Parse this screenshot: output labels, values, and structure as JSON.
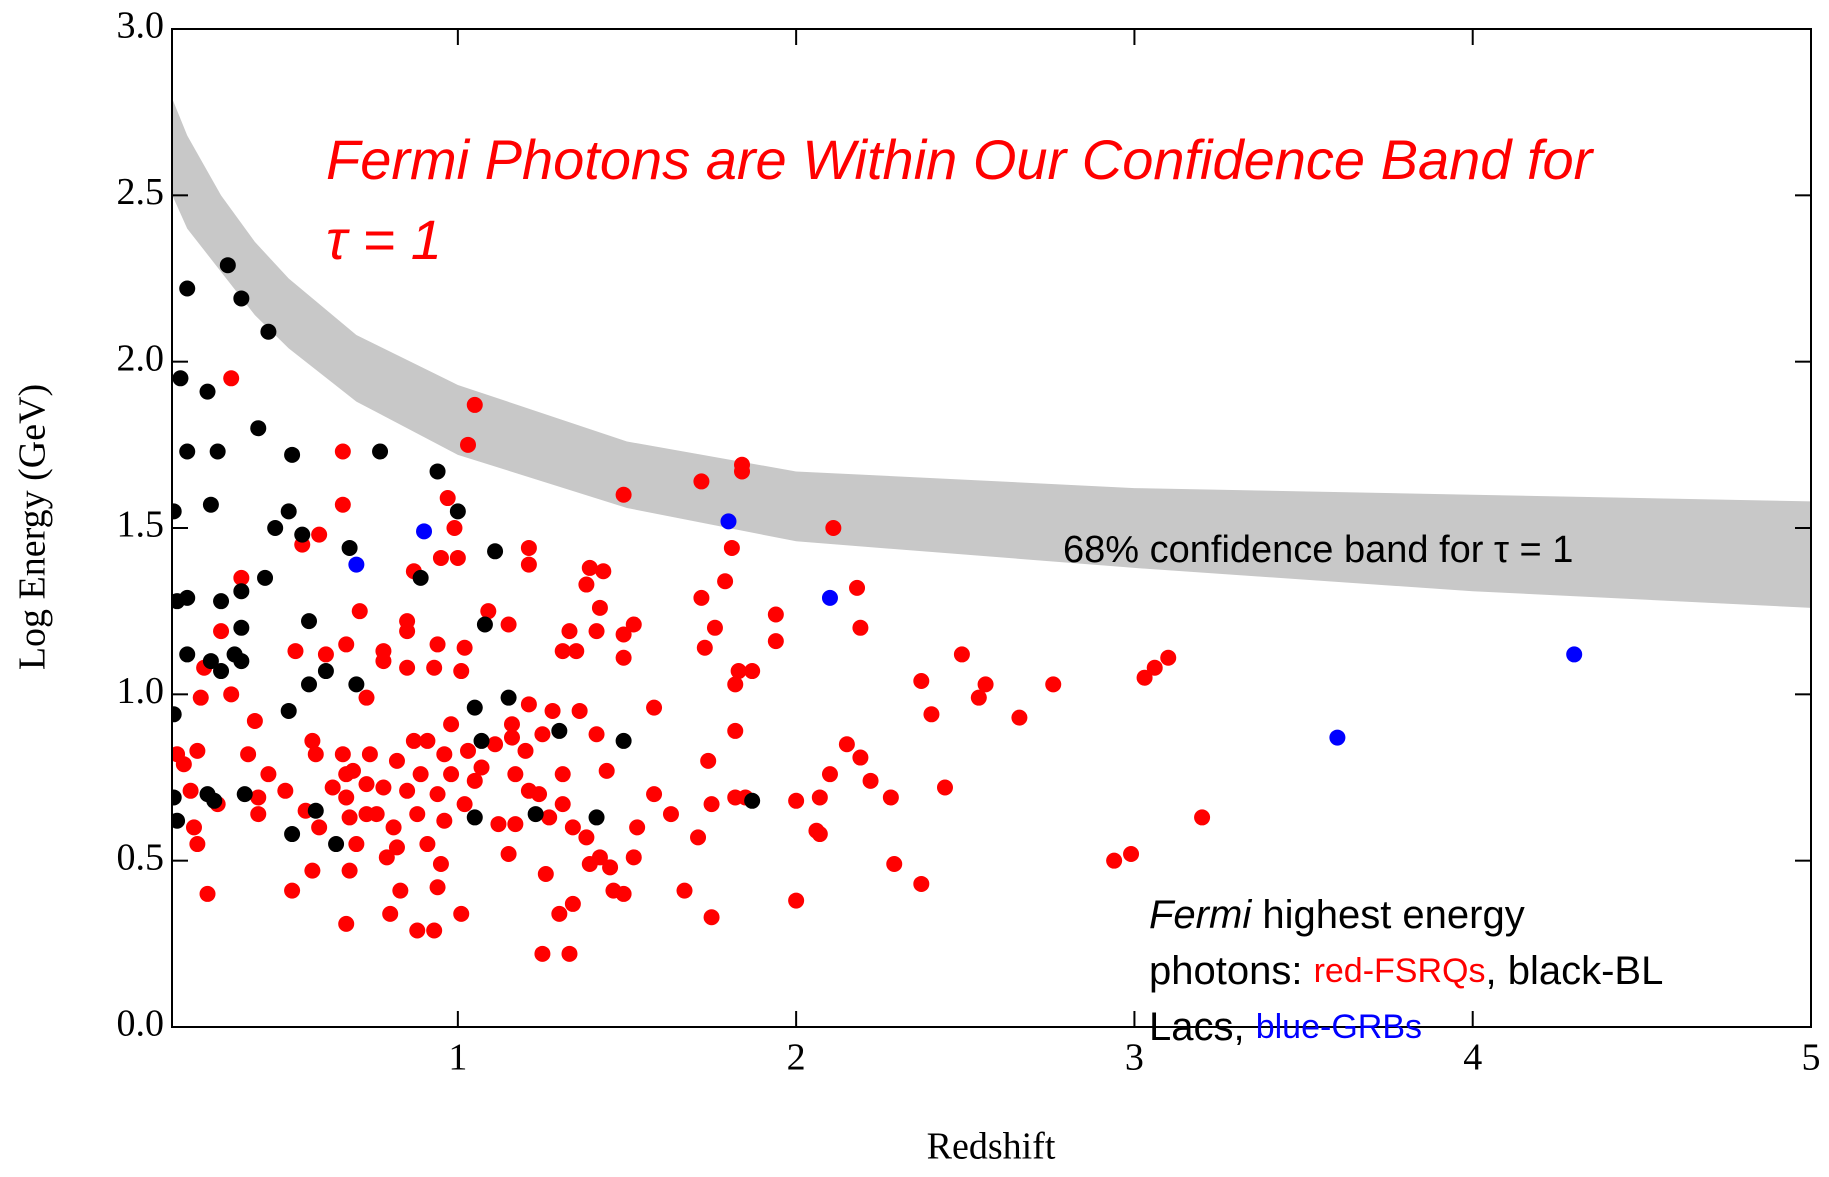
{
  "chart_data": {
    "type": "scatter",
    "xlabel": "Redshift",
    "ylabel": "Log Energy (GeV)",
    "title_lines": [
      "Fermi Photons are Within Our Confidence Band for",
      "τ = 1"
    ],
    "band_label": "68% confidence band for τ = 1",
    "note_lines": [
      [
        {
          "text": "Fermi",
          "style": "italic"
        },
        {
          "text": " highest energy"
        }
      ],
      [
        {
          "text": "photons: "
        },
        {
          "text": "red-FSRQs",
          "color": "#ff0000"
        },
        {
          "text": ", black-BL"
        }
      ],
      [
        {
          "text": "Lacs, "
        },
        {
          "text": "blue-GRBs",
          "color": "#0000ff"
        }
      ]
    ],
    "xlim": [
      0.155,
      5
    ],
    "ylim": [
      0,
      3
    ],
    "xticks": [
      1,
      2,
      3,
      4,
      5
    ],
    "yticks": [
      {
        "value": 0,
        "label": "0.0"
      },
      0.5,
      {
        "value": 1,
        "label": "1.0"
      },
      1.5,
      {
        "value": 2,
        "label": "2.0"
      },
      2.5,
      {
        "value": 3,
        "label": "3.0"
      }
    ],
    "band": {
      "color": "#c8c8c8",
      "x": [
        0.156,
        0.2,
        0.3,
        0.4,
        0.5,
        0.7,
        1,
        1.5,
        2,
        3,
        4,
        5
      ],
      "upper": [
        2.79,
        2.68,
        2.5,
        2.36,
        2.25,
        2.08,
        1.93,
        1.76,
        1.67,
        1.62,
        1.6,
        1.58
      ],
      "lower": [
        2.5,
        2.4,
        2.27,
        2.14,
        2.04,
        1.88,
        1.72,
        1.56,
        1.46,
        1.38,
        1.31,
        1.26
      ]
    },
    "series": [
      {
        "color": "#ff0000",
        "x": [
          0.33,
          1.05,
          1.03,
          0.66,
          1.84,
          1.84,
          1.72,
          1.49,
          0.97,
          0.66,
          2.11,
          0.59,
          0.99,
          1.81,
          1.21,
          0.54,
          0.95,
          1.0,
          1.21,
          1.39,
          1.43,
          0.36,
          0.87,
          1.79,
          1.38,
          2.18,
          1.72,
          1.09,
          0.71,
          1.42,
          1.94,
          0.85,
          1.52,
          2.19,
          1.15,
          0.3,
          1.76,
          1.33,
          1.41,
          0.85,
          0.94,
          1.02,
          0.67,
          0.52,
          0.78,
          1.31,
          1.49,
          1.94,
          1.73,
          1.35,
          0.61,
          0.85,
          0.93,
          1.01,
          0.25,
          1.49,
          0.78,
          1.83,
          1.87,
          2.37,
          2.49,
          3.1,
          3.06,
          3.03,
          2.76,
          2.56,
          2.54,
          1.82,
          0.24,
          0.73,
          0.33,
          2.66,
          2.4,
          1.58,
          1.21,
          1.28,
          0.4,
          0.98,
          1.16,
          1.36,
          1.82,
          0.87,
          0.91,
          0.57,
          1.16,
          1.11,
          1.41,
          2.15,
          0.23,
          0.38,
          0.66,
          0.74,
          1.03,
          1.25,
          1.2,
          0.17,
          0.58,
          0.96,
          2.19,
          1.74,
          0.82,
          0.19,
          1.07,
          2.1,
          0.44,
          0.69,
          0.89,
          0.67,
          2.22,
          1.17,
          1.44,
          0.98,
          1.05,
          1.31,
          0.73,
          0.49,
          0.78,
          0.63,
          0.85,
          0.41,
          0.94,
          1.21,
          1.24,
          2.07,
          1.82,
          2.0,
          1.58,
          0.21,
          1.31,
          1.75,
          1.02,
          1.85,
          2.28,
          2.44,
          0.67,
          0.29,
          0.41,
          0.55,
          0.68,
          0.73,
          0.76,
          0.88,
          1.17,
          1.12,
          1.27,
          1.63,
          3.2,
          0.22,
          0.59,
          0.81,
          0.96,
          1.34,
          1.53,
          2.06,
          2.07,
          1.71,
          0.23,
          0.7,
          0.82,
          0.91,
          1.38,
          1.15,
          1.52,
          0.79,
          0.57,
          0.68,
          0.95,
          1.39,
          1.42,
          2.29,
          2.99,
          2.94,
          1.26,
          1.45,
          2.37,
          0.94,
          0.51,
          0.83,
          1.67,
          0.26,
          1.46,
          1.49,
          2.0,
          1.34,
          1.3,
          1.01,
          1.75,
          0.67,
          0.88,
          0.93,
          1.25,
          1.33,
          0.8
        ],
        "values": [
          1.95,
          1.87,
          1.75,
          1.73,
          1.69,
          1.67,
          1.64,
          1.6,
          1.59,
          1.57,
          1.5,
          1.48,
          1.5,
          1.44,
          1.44,
          1.45,
          1.41,
          1.41,
          1.39,
          1.38,
          1.37,
          1.35,
          1.37,
          1.34,
          1.33,
          1.32,
          1.29,
          1.25,
          1.25,
          1.26,
          1.24,
          1.22,
          1.21,
          1.2,
          1.21,
          1.19,
          1.2,
          1.19,
          1.19,
          1.19,
          1.15,
          1.14,
          1.15,
          1.13,
          1.13,
          1.13,
          1.18,
          1.16,
          1.14,
          1.13,
          1.12,
          1.08,
          1.08,
          1.07,
          1.08,
          1.11,
          1.1,
          1.07,
          1.07,
          1.04,
          1.12,
          1.11,
          1.08,
          1.05,
          1.03,
          1.03,
          0.99,
          1.03,
          0.99,
          0.99,
          1.0,
          0.93,
          0.94,
          0.96,
          0.97,
          0.95,
          0.92,
          0.91,
          0.91,
          0.95,
          0.89,
          0.86,
          0.86,
          0.86,
          0.87,
          0.85,
          0.88,
          0.85,
          0.83,
          0.82,
          0.82,
          0.82,
          0.83,
          0.88,
          0.83,
          0.82,
          0.82,
          0.82,
          0.81,
          0.8,
          0.8,
          0.79,
          0.78,
          0.76,
          0.76,
          0.77,
          0.76,
          0.76,
          0.74,
          0.76,
          0.77,
          0.76,
          0.74,
          0.76,
          0.73,
          0.71,
          0.72,
          0.72,
          0.71,
          0.69,
          0.7,
          0.71,
          0.7,
          0.69,
          0.69,
          0.68,
          0.7,
          0.71,
          0.67,
          0.67,
          0.67,
          0.69,
          0.69,
          0.72,
          0.69,
          0.67,
          0.64,
          0.65,
          0.63,
          0.64,
          0.64,
          0.64,
          0.61,
          0.61,
          0.63,
          0.64,
          0.63,
          0.6,
          0.6,
          0.6,
          0.62,
          0.6,
          0.6,
          0.59,
          0.58,
          0.57,
          0.55,
          0.55,
          0.54,
          0.55,
          0.57,
          0.52,
          0.51,
          0.51,
          0.47,
          0.47,
          0.49,
          0.49,
          0.51,
          0.49,
          0.52,
          0.5,
          0.46,
          0.48,
          0.43,
          0.42,
          0.41,
          0.41,
          0.41,
          0.4,
          0.41,
          0.4,
          0.38,
          0.37,
          0.34,
          0.34,
          0.33,
          0.31,
          0.29,
          0.29,
          0.22,
          0.22,
          0.34
        ]
      },
      {
        "color": "#000000",
        "x": [
          0.32,
          0.2,
          0.36,
          0.44,
          0.18,
          0.26,
          0.41,
          0.2,
          0.29,
          0.51,
          0.77,
          0.94,
          0.27,
          0.5,
          1.0,
          0.46,
          0.54,
          0.68,
          1.11,
          0.43,
          0.89,
          0.36,
          0.17,
          0.2,
          0.3,
          0.36,
          0.56,
          1.08,
          0.2,
          0.27,
          0.3,
          0.34,
          0.36,
          0.61,
          0.56,
          0.7,
          0.5,
          1.05,
          1.15,
          1.07,
          1.3,
          1.49,
          0.16,
          0.26,
          0.28,
          0.37,
          0.17,
          0.58,
          0.51,
          0.64,
          1.05,
          1.23,
          1.41,
          1.87,
          0.16,
          0.16
        ],
        "values": [
          2.29,
          2.22,
          2.19,
          2.09,
          1.95,
          1.91,
          1.8,
          1.73,
          1.73,
          1.72,
          1.73,
          1.67,
          1.57,
          1.55,
          1.55,
          1.5,
          1.48,
          1.44,
          1.43,
          1.35,
          1.35,
          1.31,
          1.28,
          1.29,
          1.28,
          1.2,
          1.22,
          1.21,
          1.12,
          1.1,
          1.07,
          1.12,
          1.1,
          1.07,
          1.03,
          1.03,
          0.95,
          0.96,
          0.99,
          0.86,
          0.89,
          0.86,
          0.69,
          0.7,
          0.68,
          0.7,
          0.62,
          0.65,
          0.58,
          0.55,
          0.63,
          0.64,
          0.63,
          0.68,
          0.94,
          1.55
        ]
      },
      {
        "color": "#0000ff",
        "x": [
          0.7,
          0.9,
          1.8,
          2.1,
          3.6,
          4.3
        ],
        "values": [
          1.39,
          1.49,
          1.52,
          1.29,
          0.87,
          1.12
        ]
      }
    ]
  }
}
